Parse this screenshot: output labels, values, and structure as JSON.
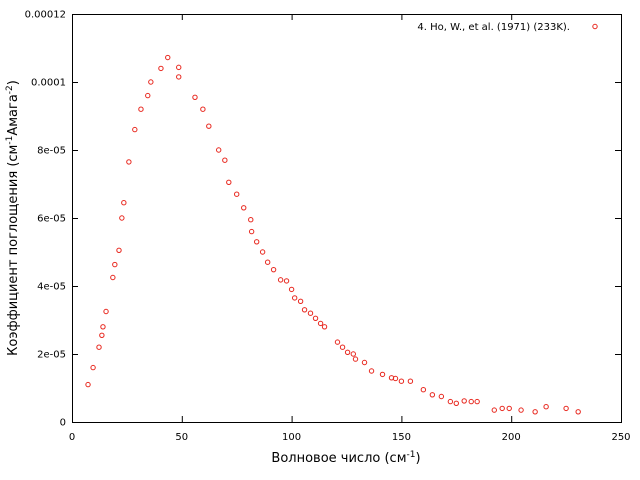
{
  "chart_data": {
    "type": "scatter",
    "xlabel": "Волновое число (см",
    "xlabel_sup": "-1",
    "xlabel_end": ")",
    "ylabel": "Коэффициент поглощения (см",
    "ylabel_sup1": "-1",
    "ylabel_mid": "Амага",
    "ylabel_sup2": "-2",
    "ylabel_end": ")",
    "xlim": [
      0,
      250
    ],
    "ylim": [
      0,
      0.00012
    ],
    "x_ticks": [
      0,
      50,
      100,
      150,
      200,
      250
    ],
    "x_tick_labels": [
      "0",
      "50",
      "100",
      "150",
      "200",
      "250"
    ],
    "y_ticks": [
      0,
      2e-05,
      4e-05,
      6e-05,
      8e-05,
      0.0001,
      0.00012
    ],
    "y_tick_labels": [
      "0",
      "2e-05",
      "4e-05",
      "6e-05",
      "8e-05",
      "0.0001",
      "0.00012"
    ],
    "grid": false,
    "legend_position": "top-right",
    "marker_color": "#e8281f",
    "series": [
      {
        "name": "4. Ho, W., et al. (1971) (233K).",
        "x": [
          7.3,
          9.6,
          12.3,
          13.6,
          14.1,
          15.5,
          18.6,
          19.5,
          21.4,
          22.7,
          23.6,
          25.9,
          28.6,
          31.4,
          34.5,
          35.9,
          40.5,
          43.6,
          48.6,
          48.6,
          56.0,
          59.6,
          62.3,
          66.8,
          69.6,
          71.4,
          75.0,
          78.2,
          81.4,
          81.8,
          84.1,
          86.8,
          89.1,
          91.8,
          95.0,
          97.7,
          100.0,
          101.4,
          104.1,
          105.9,
          108.6,
          110.9,
          113.2,
          115.0,
          120.9,
          123.2,
          125.5,
          128.1,
          129.1,
          133.2,
          136.4,
          141.4,
          145.5,
          147.3,
          150.0,
          154.1,
          160.0,
          164.1,
          168.2,
          172.3,
          175.0,
          178.6,
          181.8,
          184.5,
          192.3,
          195.9,
          199.1,
          204.5,
          210.9,
          215.9,
          225.0,
          230.5
        ],
        "y": [
          1.1e-05,
          1.6e-05,
          2.2e-05,
          2.55e-05,
          2.8e-05,
          3.25e-05,
          4.25e-05,
          4.63e-05,
          5.05e-05,
          6e-05,
          6.45e-05,
          7.65e-05,
          8.6e-05,
          9.2e-05,
          9.6e-05,
          0.0001,
          0.000104,
          0.0001072,
          0.0001043,
          0.0001015,
          9.55e-05,
          9.2e-05,
          8.7e-05,
          8e-05,
          7.7e-05,
          7.05e-05,
          6.7e-05,
          6.3e-05,
          5.95e-05,
          5.6e-05,
          5.3e-05,
          5e-05,
          4.7e-05,
          4.48e-05,
          4.18e-05,
          4.15e-05,
          3.9e-05,
          3.65e-05,
          3.55e-05,
          3.3e-05,
          3.2e-05,
          3.05e-05,
          2.9e-05,
          2.8e-05,
          2.35e-05,
          2.2e-05,
          2.05e-05,
          2e-05,
          1.85e-05,
          1.75e-05,
          1.5e-05,
          1.4e-05,
          1.3e-05,
          1.28e-05,
          1.2e-05,
          1.2e-05,
          9.5e-06,
          8e-06,
          7.5e-06,
          6e-06,
          5.5e-06,
          6.2e-06,
          6e-06,
          6e-06,
          3.5e-06,
          4e-06,
          4e-06,
          3.5e-06,
          3e-06,
          4.5e-06,
          4e-06,
          3e-06
        ]
      }
    ]
  }
}
